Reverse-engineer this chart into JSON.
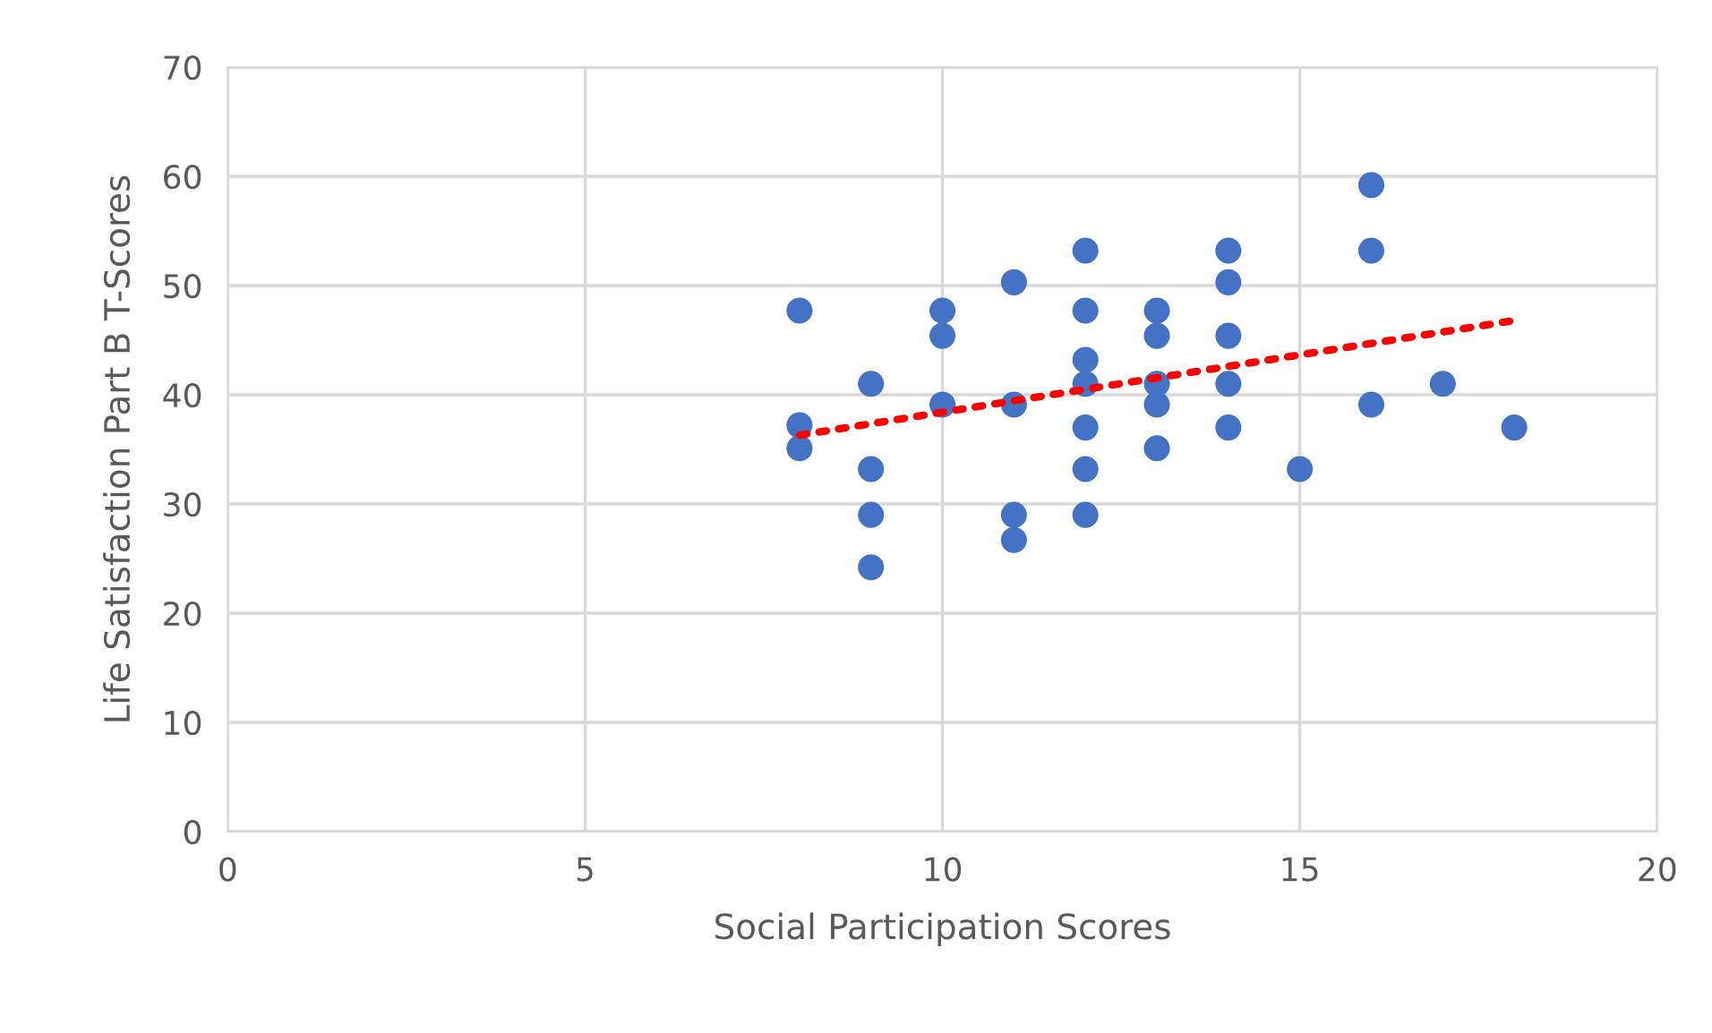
{
  "chart_data": {
    "type": "scatter",
    "xlabel": "Social Participation Scores",
    "ylabel": "Life Satisfaction Part B T-Scores",
    "xlim": [
      0,
      20
    ],
    "xticks": [
      0,
      5,
      10,
      15,
      20
    ],
    "ylim": [
      0,
      70
    ],
    "yticks": [
      0,
      10,
      20,
      30,
      40,
      50,
      60,
      70
    ],
    "grid": true,
    "legend": false,
    "marker": "circle",
    "series": [
      {
        "color": "#4472c4",
        "x": [
          8,
          8,
          8,
          9,
          9,
          9,
          9,
          10,
          10,
          10,
          11,
          11,
          11,
          11,
          12,
          12,
          12,
          12,
          12,
          12,
          12,
          13,
          13,
          13,
          13,
          13,
          14,
          14,
          14,
          14,
          14,
          15,
          16,
          16,
          16,
          17,
          18
        ],
        "values": [
          47.7,
          37.2,
          35.1,
          41.0,
          33.2,
          29.0,
          24.2,
          47.7,
          45.4,
          39.1,
          50.3,
          39.1,
          29.0,
          26.7,
          53.2,
          47.7,
          43.2,
          41.0,
          37.0,
          33.2,
          29.0,
          47.7,
          45.4,
          41.0,
          39.1,
          35.1,
          53.2,
          50.3,
          45.4,
          41.0,
          37.0,
          33.2,
          59.2,
          53.2,
          39.1,
          41.0,
          37.0
        ]
      },
      {
        "type": "line",
        "color": "#ff0000",
        "line_style": "dotted",
        "marker": "none",
        "x": [
          8,
          18
        ],
        "values": [
          36.3,
          46.8
        ]
      }
    ]
  }
}
